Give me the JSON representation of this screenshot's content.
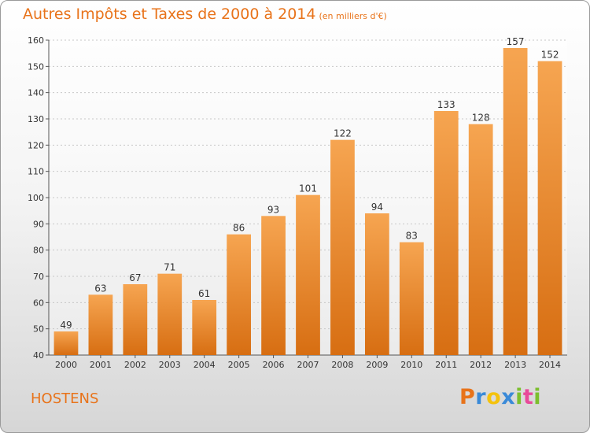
{
  "chart_data": {
    "type": "bar",
    "title": "Autres Impôts et Taxes de 2000 à 2014",
    "subtitle": "(en milliers d'€)",
    "categories": [
      "2000",
      "2001",
      "2002",
      "2003",
      "2004",
      "2005",
      "2006",
      "2007",
      "2008",
      "2009",
      "2010",
      "2011",
      "2012",
      "2013",
      "2014"
    ],
    "values": [
      49,
      63,
      67,
      71,
      61,
      86,
      93,
      101,
      122,
      94,
      83,
      133,
      128,
      157,
      152
    ],
    "ylim": [
      40,
      160
    ],
    "yticks": [
      40,
      50,
      60,
      70,
      80,
      90,
      100,
      110,
      120,
      130,
      140,
      150,
      160
    ],
    "grid": true,
    "data_labels": true,
    "bar_color": "#f0902e"
  },
  "location": "HOSTENS",
  "logo": {
    "letters": [
      "P",
      "r",
      "o",
      "x",
      "i",
      "t",
      "i"
    ],
    "colors": [
      "#e8731a",
      "#3a8ad8",
      "#f4c20d",
      "#3a8ad8",
      "#7cbf2e",
      "#e84a9a",
      "#7cbf2e"
    ]
  }
}
